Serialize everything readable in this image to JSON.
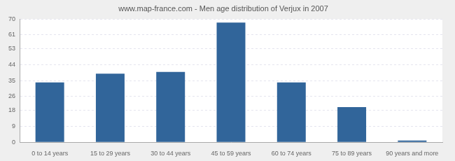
{
  "chart_data": {
    "type": "bar",
    "title": "www.map-france.com - Men age distribution of Verjux in 2007",
    "categories": [
      "0 to 14 years",
      "15 to 29 years",
      "30 to 44 years",
      "45 to 59 years",
      "60 to 74 years",
      "75 to 89 years",
      "90 years and more"
    ],
    "values": [
      34,
      39,
      40,
      68,
      34,
      20,
      1
    ],
    "color": "#31659a",
    "ylim": [
      0,
      70
    ],
    "yticks": [
      0,
      9,
      18,
      26,
      35,
      44,
      53,
      61,
      70
    ],
    "grid": true
  }
}
